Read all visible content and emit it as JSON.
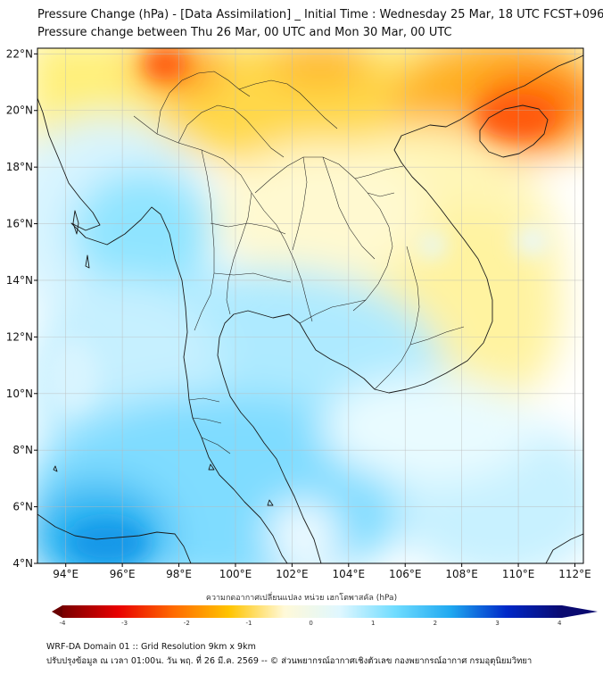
{
  "header": {
    "title_line1": "Pressure Change (hPa) - [Data Assimilation] _ Initial Time : Wednesday 25 Mar, 18 UTC FCST+096",
    "title_line2": "Pressure change between Thu 26 Mar, 00 UTC and Mon 30 Mar, 00 UTC"
  },
  "map": {
    "lon_ticks": [
      {
        "value": 94,
        "label": "94°E"
      },
      {
        "value": 96,
        "label": "96°E"
      },
      {
        "value": 98,
        "label": "98°E"
      },
      {
        "value": 100,
        "label": "100°E"
      },
      {
        "value": 102,
        "label": "102°E"
      },
      {
        "value": 104,
        "label": "104°E"
      },
      {
        "value": 106,
        "label": "106°E"
      },
      {
        "value": 108,
        "label": "108°E"
      },
      {
        "value": 110,
        "label": "110°E"
      },
      {
        "value": 112,
        "label": "112°E"
      }
    ],
    "lat_ticks": [
      {
        "value": 4,
        "label": "4°N"
      },
      {
        "value": 6,
        "label": "6°N"
      },
      {
        "value": 8,
        "label": "8°N"
      },
      {
        "value": 10,
        "label": "10°N"
      },
      {
        "value": 12,
        "label": "12°N"
      },
      {
        "value": 14,
        "label": "14°N"
      },
      {
        "value": 16,
        "label": "16°N"
      },
      {
        "value": 18,
        "label": "18°N"
      },
      {
        "value": 20,
        "label": "20°N"
      },
      {
        "value": 22,
        "label": "22°N"
      }
    ],
    "lon_range": [
      93,
      112.3
    ],
    "lat_range": [
      4,
      22.2
    ],
    "grid": true
  },
  "colorbar": {
    "title": "ความกดอากาศเปลี่ยนแปลง หน่วย เฮกโตพาสคัล (hPa)",
    "ticks": [
      "-4",
      "-3",
      "-2",
      "-1",
      "0",
      "1",
      "2",
      "3",
      "4"
    ],
    "colors": [
      "#7a0000",
      "#e80000",
      "#ff6a00",
      "#ffc400",
      "#fff9d8",
      "#dff7ff",
      "#6fdcff",
      "#1fa8f0",
      "#0028c8",
      "#0a0a70"
    ]
  },
  "footer": {
    "line1": "WRF-DA Domain 01 :: Grid Resolution 9km x 9km",
    "line2": "ปรับปรุงข้อมูล ณ เวลา 01:00น. วัน พฤ. ที่ 26 มี.ค. 2569 -- © ส่วนพยากรณ์อากาศเชิงตัวเลข กองพยากรณ์อากาศ กรมอุตุนิยมวิทยา"
  }
}
